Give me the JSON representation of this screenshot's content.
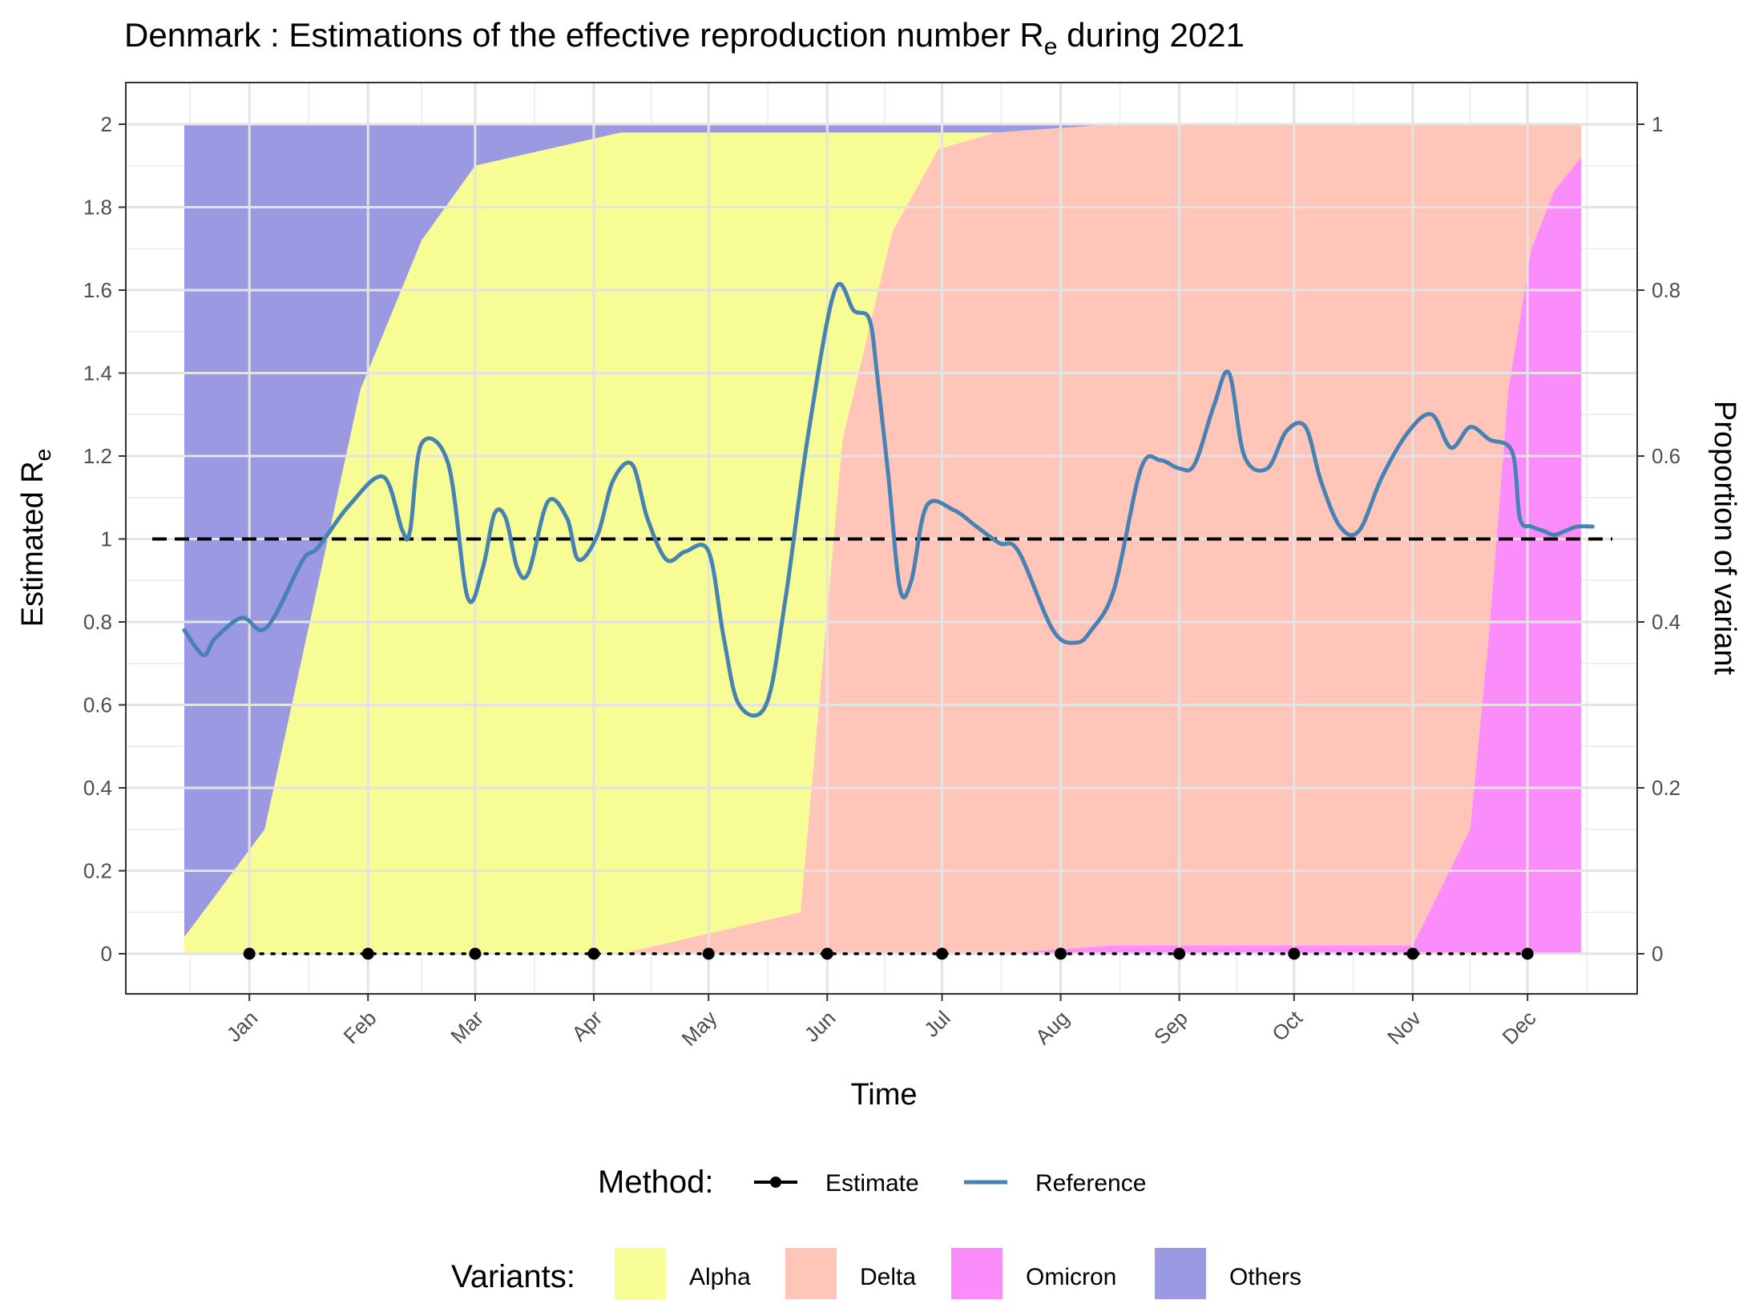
{
  "chart_data": {
    "type": "line",
    "title": {
      "main": "Denmark : Estimations of the effective reproduction number R",
      "sub": "e",
      "tail": " during 2021"
    },
    "xlabel": "Time",
    "ylabel": {
      "main": "Estimated R",
      "sub": "e"
    },
    "y2label": "Proportion of variant",
    "ylim": [
      -0.1,
      2.1
    ],
    "y_ticks": [
      "0",
      "0.2",
      "0.4",
      "0.6",
      "0.8",
      "1",
      "1.2",
      "1.4",
      "1.6",
      "1.8",
      "2"
    ],
    "y2_ticks": [
      "0",
      "0.2",
      "0.4",
      "0.6",
      "0.8",
      "1"
    ],
    "x_ticks": [
      "Jan",
      "Feb",
      "Mar",
      "Apr",
      "May",
      "Jun",
      "Jul",
      "Aug",
      "Sep",
      "Oct",
      "Nov",
      "Dec"
    ],
    "grid": true,
    "reference_line": 1,
    "series": [
      {
        "name": "Estimate",
        "color": "#000000",
        "x": [
          "2021-01-01",
          "2021-02-01",
          "2021-03-01",
          "2021-04-01",
          "2021-05-01",
          "2021-06-01",
          "2021-07-01",
          "2021-08-01",
          "2021-09-01",
          "2021-10-01",
          "2021-11-01",
          "2021-12-01"
        ],
        "values": [
          0,
          0,
          0,
          0,
          0,
          0,
          0,
          0,
          0,
          0,
          0,
          0
        ]
      },
      {
        "name": "Reference",
        "color": "#4682b4",
        "x": [
          "2020-12-15",
          "2020-12-20",
          "2020-12-23",
          "2020-12-30",
          "2021-01-04",
          "2021-01-08",
          "2021-01-15",
          "2021-01-19",
          "2021-01-27",
          "2021-02-05",
          "2021-02-10",
          "2021-02-12",
          "2021-02-15",
          "2021-02-22",
          "2021-02-27",
          "2021-03-03",
          "2021-03-06",
          "2021-03-09",
          "2021-03-12",
          "2021-03-15",
          "2021-03-20",
          "2021-03-25",
          "2021-03-28",
          "2021-04-02",
          "2021-04-06",
          "2021-04-11",
          "2021-04-15",
          "2021-04-20",
          "2021-04-25",
          "2021-05-01",
          "2021-05-05",
          "2021-05-09",
          "2021-05-16",
          "2021-05-21",
          "2021-05-27",
          "2021-06-03",
          "2021-06-08",
          "2021-06-12",
          "2021-06-14",
          "2021-06-17",
          "2021-06-20",
          "2021-06-23",
          "2021-06-27",
          "2021-07-04",
          "2021-07-10",
          "2021-07-16",
          "2021-07-21",
          "2021-07-30",
          "2021-08-05",
          "2021-08-09",
          "2021-08-15",
          "2021-08-22",
          "2021-08-27",
          "2021-09-01",
          "2021-09-05",
          "2021-09-10",
          "2021-09-14",
          "2021-09-18",
          "2021-09-24",
          "2021-09-29",
          "2021-10-04",
          "2021-10-08",
          "2021-10-13",
          "2021-10-18",
          "2021-10-24",
          "2021-10-31",
          "2021-11-06",
          "2021-11-11",
          "2021-11-16",
          "2021-11-21",
          "2021-11-27",
          "2021-11-29",
          "2021-12-02",
          "2021-12-05",
          "2021-12-08",
          "2021-12-11",
          "2021-12-14",
          "2021-12-18"
        ],
        "values": [
          0.78,
          0.72,
          0.76,
          0.81,
          0.78,
          0.82,
          0.95,
          0.98,
          1.08,
          1.15,
          1.02,
          1.02,
          1.23,
          1.18,
          0.86,
          0.93,
          1.06,
          1.05,
          0.93,
          0.92,
          1.09,
          1.05,
          0.95,
          1.01,
          1.14,
          1.18,
          1.05,
          0.95,
          0.97,
          0.97,
          0.76,
          0.6,
          0.6,
          0.85,
          1.25,
          1.6,
          1.55,
          1.53,
          1.4,
          1.15,
          0.88,
          0.9,
          1.08,
          1.07,
          1.03,
          0.99,
          0.97,
          0.78,
          0.75,
          0.78,
          0.88,
          1.17,
          1.19,
          1.17,
          1.18,
          1.32,
          1.4,
          1.2,
          1.17,
          1.26,
          1.27,
          1.14,
          1.03,
          1.02,
          1.15,
          1.26,
          1.3,
          1.22,
          1.27,
          1.24,
          1.21,
          1.05,
          1.03,
          1.02,
          1.01,
          1.02,
          1.03,
          1.03
        ]
      }
    ],
    "variants": {
      "x": [
        "2020-12-15",
        "2021-01-05",
        "2021-01-30",
        "2021-02-15",
        "2021-03-01",
        "2021-04-08",
        "2021-05-25",
        "2021-06-05",
        "2021-06-18",
        "2021-06-30",
        "2021-07-15",
        "2021-08-15",
        "2021-09-15",
        "2021-10-15",
        "2021-11-01",
        "2021-11-16",
        "2021-11-21",
        "2021-11-26",
        "2021-12-02",
        "2021-12-08",
        "2021-12-15"
      ],
      "layers": [
        {
          "name": "Alpha",
          "color": "#f7fd94",
          "values": [
            0.02,
            0.15,
            0.68,
            0.86,
            0.95,
            0.99,
            0.94,
            0.37,
            0.12,
            0.02,
            0,
            0,
            0,
            0,
            0,
            0,
            0,
            0,
            0,
            0,
            0
          ]
        },
        {
          "name": "Delta",
          "color": "#ffc5b9",
          "values": [
            0,
            0,
            0,
            0,
            0,
            0,
            0.05,
            0.62,
            0.87,
            0.97,
            0.99,
            0.99,
            0.99,
            0.99,
            0.99,
            0.85,
            0.61,
            0.32,
            0.15,
            0.08,
            0.04
          ]
        },
        {
          "name": "Omicron",
          "color": "#fb8dfa",
          "values": [
            0,
            0,
            0,
            0,
            0,
            0,
            0,
            0,
            0,
            0,
            0,
            0.01,
            0.01,
            0.01,
            0.01,
            0.15,
            0.39,
            0.68,
            0.85,
            0.92,
            0.96
          ]
        },
        {
          "name": "Others",
          "color": "#9a99e1",
          "values": [
            0.98,
            0.85,
            0.32,
            0.14,
            0.05,
            0.01,
            0.01,
            0.01,
            0.01,
            0.01,
            0.01,
            0,
            0,
            0,
            0,
            0,
            0,
            0,
            0,
            0,
            0
          ]
        }
      ]
    },
    "legend": {
      "method_title": "Method:",
      "method_items": [
        "Estimate",
        "Reference"
      ],
      "variants_title": "Variants:",
      "variant_items": [
        "Alpha",
        "Delta",
        "Omicron",
        "Others"
      ],
      "placement": "bottom"
    }
  }
}
